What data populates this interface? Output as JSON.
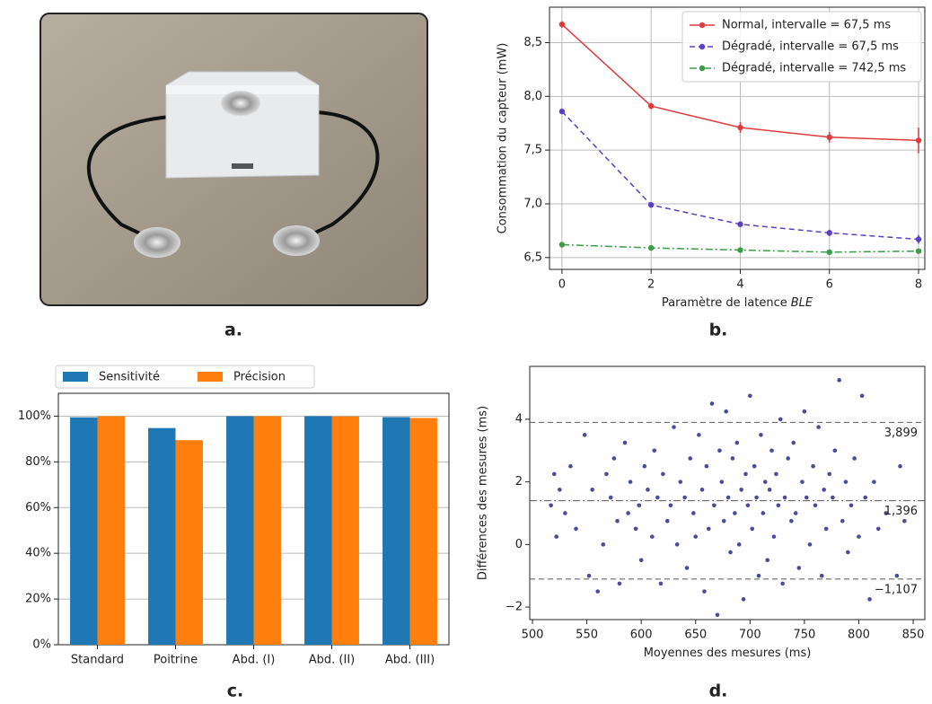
{
  "panel_labels": [
    "a.",
    "b.",
    "c.",
    "d."
  ],
  "chart_data": [
    {
      "type": "line",
      "xlabel": "Paramètre de latence",
      "xlabel_italic": "BLE",
      "ylabel": "Consommation du capteur (mW)",
      "x": [
        0,
        2,
        4,
        6,
        8
      ],
      "series": [
        {
          "name": "Normal, intervalle = 67,5 ms",
          "color": "#e03a3a",
          "dash": "solid",
          "values": [
            8.67,
            7.91,
            7.71,
            7.62,
            7.59
          ],
          "errors": [
            0.03,
            0.03,
            0.05,
            0.05,
            0.12
          ]
        },
        {
          "name": "Dégradé, intervalle = 67,5 ms",
          "color": "#5b3fc4",
          "dash": "dashed",
          "values": [
            7.86,
            6.99,
            6.81,
            6.73,
            6.67
          ],
          "errors": [
            0.02,
            0.02,
            0.02,
            0.03,
            0.04
          ]
        },
        {
          "name": "Dégradé, intervalle = 742,5 ms",
          "color": "#3a9e48",
          "dash": "dashdot",
          "values": [
            6.62,
            6.59,
            6.57,
            6.55,
            6.56
          ],
          "errors": [
            0.01,
            0.01,
            0.01,
            0.01,
            0.01
          ]
        }
      ],
      "xlim": [
        -0.28,
        8.14
      ],
      "ylim": [
        6.39,
        8.83
      ],
      "xticks": [
        0,
        2,
        4,
        6,
        8
      ],
      "yticks": [
        {
          "value": 6.5,
          "label": "6,5"
        },
        {
          "value": 7.0,
          "label": "7,0"
        },
        {
          "value": 7.5,
          "label": "7,5"
        },
        {
          "value": 8.0,
          "label": "8,0"
        },
        {
          "value": 8.5,
          "label": "8,5"
        }
      ],
      "grid": true,
      "legend": "upper right"
    },
    {
      "type": "bar",
      "categories": [
        "Standard",
        "Poitrine",
        "Abd. (I)",
        "Abd. (II)",
        "Abd. (III)"
      ],
      "series": [
        {
          "name": "Sensitivité",
          "color": "#1f77b4",
          "values": [
            99.5,
            94.8,
            100,
            100,
            99.6
          ]
        },
        {
          "name": "Précision",
          "color": "#ff7f0e",
          "values": [
            100,
            89.5,
            100,
            99.9,
            99.2
          ]
        }
      ],
      "ylim": [
        0,
        110
      ],
      "yticks": [
        {
          "value": 0,
          "label": "0%"
        },
        {
          "value": 20,
          "label": "20%"
        },
        {
          "value": 40,
          "label": "40%"
        },
        {
          "value": 60,
          "label": "60%"
        },
        {
          "value": 80,
          "label": "80%"
        },
        {
          "value": 100,
          "label": "100%"
        }
      ],
      "grid": true,
      "legend": "top"
    },
    {
      "type": "scatter",
      "xlabel": "Moyennes des mesures (ms)",
      "ylabel": "Différences des mesures (ms)",
      "color": "#4b4b9b",
      "x": [
        517,
        520,
        522,
        525,
        530,
        535,
        540,
        548,
        552,
        555,
        560,
        565,
        568,
        572,
        575,
        578,
        580,
        585,
        588,
        590,
        595,
        598,
        600,
        603,
        606,
        610,
        612,
        615,
        618,
        620,
        624,
        627,
        630,
        633,
        636,
        640,
        642,
        645,
        648,
        650,
        653,
        656,
        658,
        660,
        662,
        665,
        667,
        670,
        672,
        674,
        676,
        678,
        680,
        682,
        684,
        686,
        688,
        690,
        692,
        694,
        696,
        698,
        700,
        702,
        704,
        706,
        708,
        710,
        712,
        714,
        716,
        718,
        720,
        722,
        724,
        726,
        728,
        730,
        732,
        735,
        738,
        740,
        742,
        745,
        748,
        750,
        752,
        755,
        758,
        760,
        763,
        766,
        768,
        770,
        773,
        776,
        778,
        782,
        785,
        788,
        790,
        793,
        796,
        800,
        803,
        806,
        810,
        814,
        818,
        825,
        835,
        838,
        842
      ],
      "values": [
        1.25,
        2.25,
        0.25,
        1.75,
        1.0,
        2.5,
        0.5,
        3.5,
        -1.0,
        1.75,
        -1.5,
        0.0,
        2.25,
        1.5,
        2.75,
        0.75,
        -1.25,
        3.25,
        1.0,
        2.0,
        0.5,
        1.25,
        -0.5,
        2.5,
        1.75,
        0.25,
        3.0,
        1.5,
        -1.25,
        2.25,
        0.75,
        1.25,
        3.75,
        0.0,
        2.0,
        1.5,
        -0.75,
        2.75,
        1.0,
        0.25,
        3.5,
        1.75,
        -1.5,
        2.5,
        0.5,
        4.5,
        1.25,
        -2.25,
        3.0,
        2.0,
        0.75,
        4.25,
        1.5,
        -0.25,
        2.75,
        1.0,
        3.25,
        0.0,
        1.75,
        -1.75,
        2.25,
        1.25,
        4.75,
        0.5,
        2.5,
        1.5,
        -1.0,
        3.5,
        1.0,
        2.0,
        -0.5,
        1.75,
        3.0,
        0.25,
        2.25,
        1.25,
        4.0,
        -1.25,
        1.5,
        2.75,
        0.75,
        3.25,
        1.0,
        -0.75,
        2.0,
        4.25,
        1.5,
        0.0,
        2.5,
        1.25,
        3.75,
        -1.0,
        1.75,
        0.5,
        2.25,
        1.5,
        3.0,
        5.25,
        0.75,
        2.0,
        -0.25,
        1.25,
        2.75,
        0.25,
        4.75,
        1.5,
        -1.75,
        2.0,
        0.5,
        1.0,
        -1.0,
        2.5,
        0.75
      ],
      "hlines": [
        {
          "value": 3.899,
          "label": "3,899",
          "dash": "dashed"
        },
        {
          "value": 1.396,
          "label": "1,396",
          "dash": "dashdot"
        },
        {
          "value": -1.107,
          "label": "−1,107",
          "dash": "dashed"
        }
      ],
      "xlim": [
        497.5,
        860.7
      ],
      "ylim": [
        -2.4,
        5.69
      ],
      "xticks": [
        500,
        550,
        600,
        650,
        700,
        750,
        800,
        850
      ],
      "yticks": [
        {
          "value": -2,
          "label": "−2"
        },
        0,
        2,
        4
      ],
      "grid": false
    }
  ]
}
